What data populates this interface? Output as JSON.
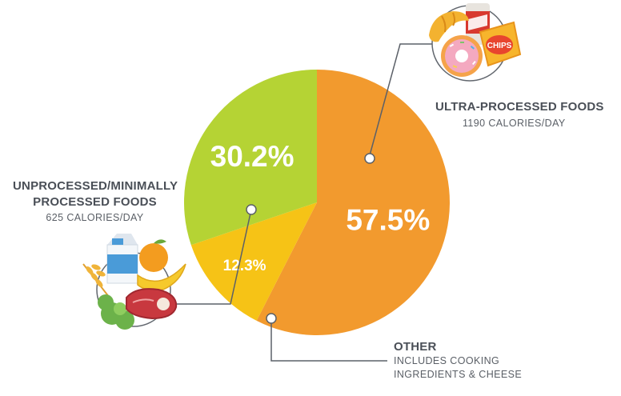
{
  "chart_data": {
    "type": "pie",
    "slices": [
      {
        "name": "ULTRA-PROCESSED FOODS",
        "value": 57.5,
        "label": "57.5%",
        "color": "#f29a2e",
        "detail": "1190 CALORIES/DAY"
      },
      {
        "name": "OTHER",
        "value": 12.3,
        "label": "12.3%",
        "color": "#f6c316",
        "detail": "INCLUDES COOKING INGREDIENTS & CHEESE"
      },
      {
        "name": "UNPROCESSED/MINIMALLY PROCESSED FOODS",
        "value": 30.2,
        "label": "30.2%",
        "color": "#b5d334",
        "detail": "625 CALORIES/DAY"
      }
    ]
  },
  "labels": {
    "ultra": {
      "title": "ULTRA-PROCESSED FOODS",
      "sub": "1190 CALORIES/DAY"
    },
    "unprocessed": {
      "title": "UNPROCESSED/MINIMALLY PROCESSED FOODS",
      "sub": "625 CALORIES/DAY"
    },
    "other": {
      "title": "OTHER",
      "sub": "INCLUDES COOKING INGREDIENTS & CHEESE"
    }
  },
  "icons": {
    "ultra": [
      "croissant-icon",
      "soda-can-icon",
      "donut-icon",
      "chips-bag-icon"
    ],
    "ultra_chips_text": "CHIPS",
    "unprocessed": [
      "milk-carton-icon",
      "orange-icon",
      "banana-icon",
      "wheat-icon",
      "lettuce-icon",
      "steak-icon"
    ]
  },
  "colors": {
    "leader": "#5b6068",
    "label_text": "#4a4f57",
    "icon_circle": "#62676e"
  }
}
